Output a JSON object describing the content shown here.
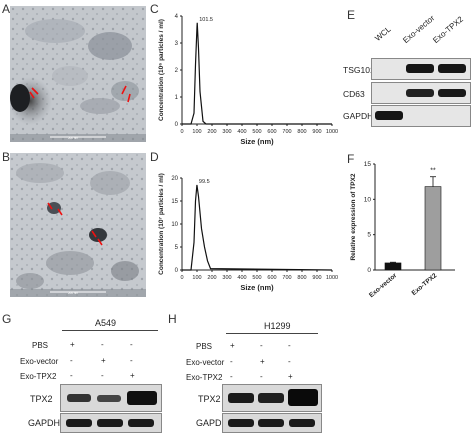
{
  "panels": {
    "A": "A",
    "B": "B",
    "C": "C",
    "D": "D",
    "E": "E",
    "F": "F",
    "G": "G",
    "H": "H"
  },
  "tem": {
    "scale_text": "200 nm"
  },
  "chart_C": {
    "type": "line",
    "ylabel": "Concentration (10⁶ particles / ml)",
    "xlabel": "Size (nm)",
    "peak_label": "101.5",
    "x_ticks": [
      "0",
      "100",
      "200",
      "300",
      "400",
      "500",
      "600",
      "700",
      "800",
      "900",
      "1000"
    ],
    "y_ticks": [
      "0",
      "1",
      "2",
      "3",
      "4"
    ],
    "ylim": [
      0,
      4
    ],
    "xlim": [
      0,
      1000
    ],
    "x": [
      0,
      60,
      80,
      90,
      100,
      101.5,
      110,
      120,
      140,
      160,
      1000
    ],
    "y": [
      0,
      0,
      0.4,
      2.2,
      3.6,
      3.75,
      2.8,
      1.2,
      0.1,
      0,
      0
    ]
  },
  "chart_D": {
    "type": "line",
    "ylabel": "Concentration (10⁷ particles / ml)",
    "xlabel": "Size (nm)",
    "peak_label": "99.5",
    "x_ticks": [
      "0",
      "100",
      "200",
      "300",
      "400",
      "500",
      "600",
      "700",
      "800",
      "900",
      "1000"
    ],
    "y_ticks": [
      "0",
      "5",
      "10",
      "15",
      "20"
    ],
    "ylim": [
      0,
      20
    ],
    "xlim": [
      0,
      1000
    ],
    "x": [
      0,
      60,
      80,
      90,
      99.5,
      110,
      130,
      150,
      170,
      190,
      1000
    ],
    "y": [
      0,
      0,
      6,
      15,
      18.5,
      16,
      9,
      5,
      2,
      0.3,
      0
    ]
  },
  "blot_E": {
    "columns": [
      "WCL",
      "Exo-vector",
      "Exo-TPX2"
    ],
    "rows": [
      "TSG101",
      "CD63",
      "GAPDH"
    ]
  },
  "chart_F": {
    "type": "bar",
    "ylabel": "Relative expression of TPX2",
    "categories": [
      "Exo-vector",
      "Exo-TPX2"
    ],
    "values": [
      1,
      11.8
    ],
    "errors": [
      0.1,
      1.4
    ],
    "y_ticks": [
      "0",
      "5",
      "10",
      "15"
    ],
    "ylim": [
      0,
      15
    ],
    "significance": "**",
    "colors": [
      "#111111",
      "#9e9e9e"
    ]
  },
  "blot_G": {
    "cell_line": "A549",
    "conditions": [
      "PBS",
      "Exo-vector",
      "Exo-TPX2"
    ],
    "marks": [
      [
        "+",
        "-",
        "-"
      ],
      [
        "-",
        "+",
        "-"
      ],
      [
        "-",
        "-",
        "+"
      ]
    ],
    "rows": [
      "TPX2",
      "GAPDH"
    ]
  },
  "blot_H": {
    "cell_line": "H1299",
    "conditions": [
      "PBS",
      "Exo-vector",
      "Exo-TPX2"
    ],
    "marks": [
      [
        "+",
        "-",
        "-"
      ],
      [
        "-",
        "+",
        "-"
      ],
      [
        "-",
        "-",
        "+"
      ]
    ],
    "rows": [
      "TPX2",
      "GAPDH"
    ]
  }
}
